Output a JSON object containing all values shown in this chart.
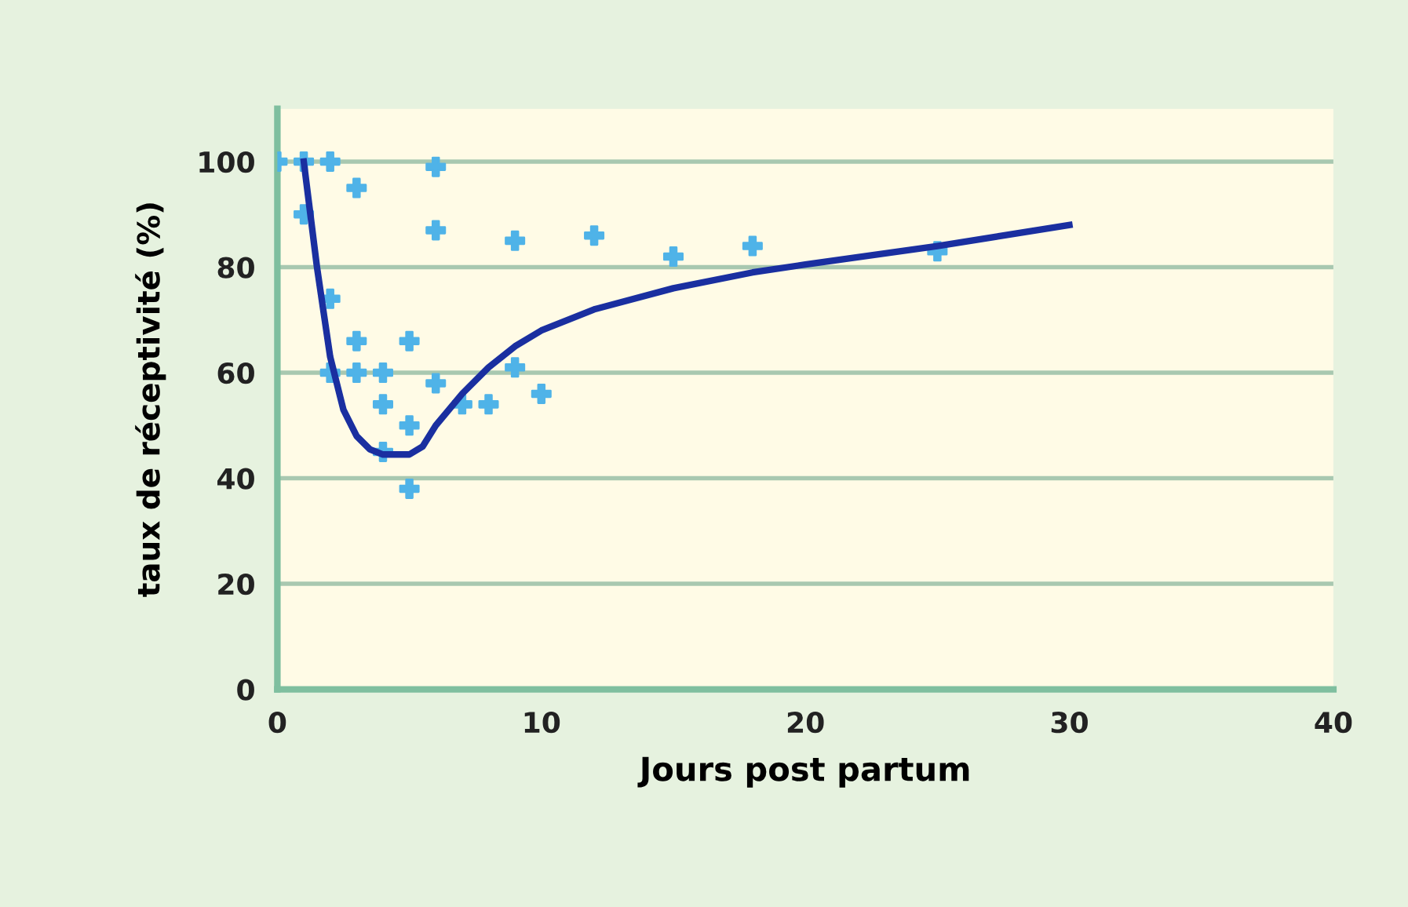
{
  "chart_data": {
    "type": "scatter",
    "xlabel": "Jours post partum",
    "ylabel": "taux de réceptivité (%)",
    "xlim": [
      0,
      40
    ],
    "ylim": [
      0,
      110
    ],
    "xticks": [
      0,
      10,
      20,
      30,
      40
    ],
    "yticks": [
      0,
      20,
      40,
      60,
      80,
      100
    ],
    "grid": "y",
    "legend": false,
    "series": [
      {
        "color": "#4fb3e8",
        "marker": "cross",
        "x": [
          0,
          1,
          1,
          2,
          3,
          6,
          6,
          2,
          3,
          2,
          3,
          4,
          5,
          4,
          6,
          5,
          5,
          4,
          7,
          8,
          9,
          9,
          10,
          12,
          15,
          18,
          25
        ],
        "values": [
          100,
          100,
          90,
          100,
          95,
          99,
          87,
          74,
          66,
          60,
          60,
          60,
          66,
          54,
          58,
          50,
          38,
          45,
          54,
          54,
          61,
          85,
          56,
          86,
          82,
          84,
          83
        ]
      },
      {
        "type": "line",
        "color": "#1a2fa0",
        "marker": "none",
        "line_style": "solid",
        "x": [
          1,
          1.5,
          2,
          2.5,
          3,
          3.5,
          4,
          5,
          5.5,
          6,
          7,
          8,
          9,
          10,
          12,
          15,
          18,
          20,
          25,
          30
        ],
        "values": [
          100,
          80,
          63,
          53,
          48,
          45.5,
          44.5,
          44.5,
          46,
          50,
          56,
          61,
          65,
          68,
          72,
          76,
          79,
          80.5,
          84,
          88
        ]
      }
    ]
  }
}
